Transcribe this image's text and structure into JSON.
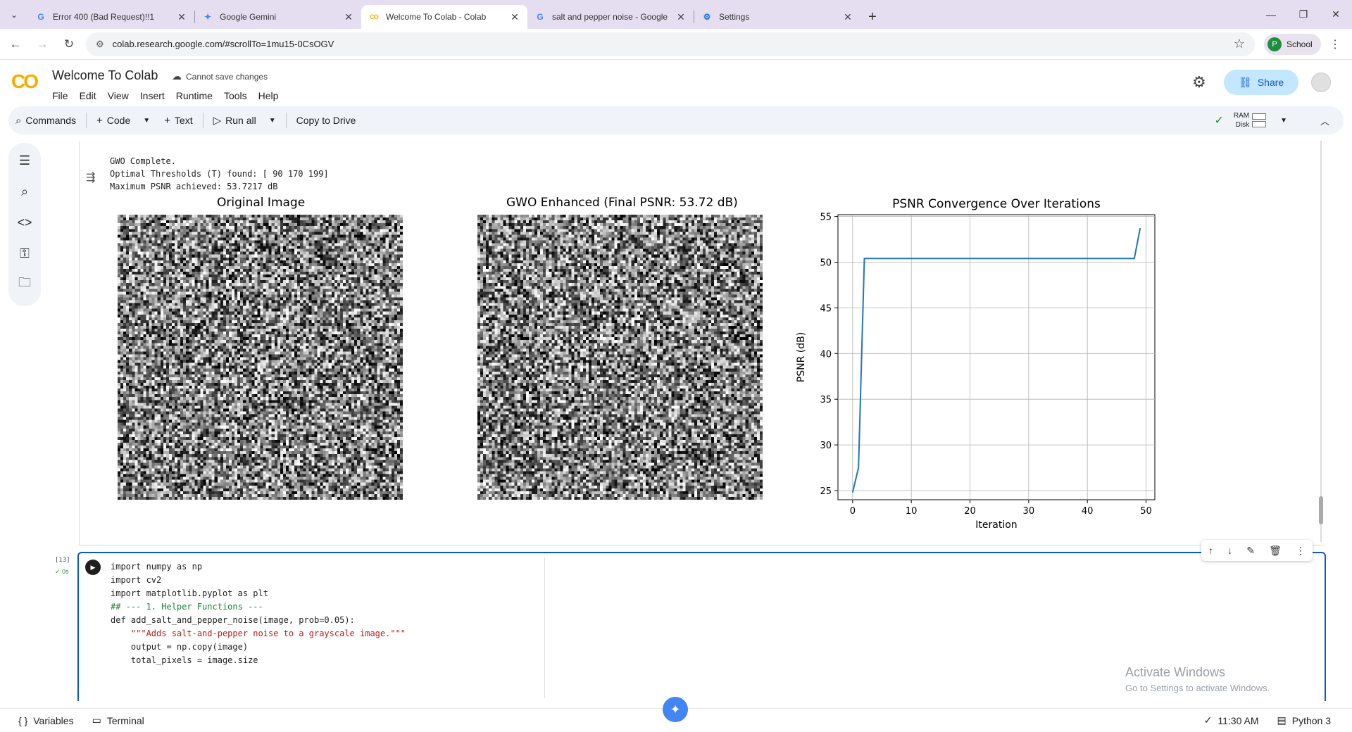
{
  "browser": {
    "tabs": [
      {
        "title": "Error 400 (Bad Request)!!1",
        "favicon": "G",
        "favicon_color": "#4285f4"
      },
      {
        "title": "Google Gemini",
        "favicon": "✦",
        "favicon_color": "#4285f4"
      },
      {
        "title": "Welcome To Colab - Colab",
        "favicon": "CO",
        "favicon_color": "#f9ab00",
        "active": true
      },
      {
        "title": "salt and pepper noise - Google",
        "favicon": "G",
        "favicon_color": "#4285f4"
      },
      {
        "title": "Settings",
        "favicon": "⚙",
        "favicon_color": "#1a73e8"
      }
    ],
    "url": "colab.research.google.com/#scrollTo=1mu15-0CsOGV",
    "profile": {
      "initial": "P",
      "label": "School"
    }
  },
  "colab": {
    "logo": "CO",
    "title": "Welcome To Colab",
    "save_status": "Cannot save changes",
    "menu": [
      "File",
      "Edit",
      "View",
      "Insert",
      "Runtime",
      "Tools",
      "Help"
    ],
    "share_label": "Share",
    "toolbar": {
      "commands": "Commands",
      "code": "Code",
      "text": "Text",
      "run_all": "Run all",
      "copy_to_drive": "Copy to Drive",
      "ram": "RAM",
      "disk": "Disk"
    }
  },
  "output": {
    "line1": "GWO Complete.",
    "line2": "Optimal Thresholds (T) found: [ 90 170 199]",
    "line3": "Maximum PSNR achieved: 53.7217 dB"
  },
  "figure": {
    "panel1_title": "Original Image",
    "panel2_title": "GWO Enhanced (Final PSNR: 53.72 dB)"
  },
  "chart_data": {
    "type": "line",
    "title": "PSNR Convergence Over Iterations",
    "xlabel": "Iteration",
    "ylabel": "PSNR (dB)",
    "xlim": [
      -2.5,
      51.5
    ],
    "ylim": [
      24,
      55.2
    ],
    "xticks": [
      0,
      10,
      20,
      30,
      40,
      50
    ],
    "yticks": [
      25,
      30,
      35,
      40,
      45,
      50,
      55
    ],
    "grid": true,
    "color": "#1f77b4",
    "x": [
      0,
      1,
      2,
      3,
      10,
      20,
      30,
      40,
      47,
      48,
      49
    ],
    "y": [
      24.8,
      27.5,
      50.4,
      50.4,
      50.4,
      50.4,
      50.4,
      50.4,
      50.4,
      50.4,
      53.72
    ]
  },
  "cell": {
    "exec_count": "[13]",
    "exec_time": "0s",
    "code_lines": [
      "import numpy as np",
      "import cv2",
      "import matplotlib.pyplot as plt",
      "",
      "## --- 1. Helper Functions ---",
      "",
      "def add_salt_and_pepper_noise(image, prob=0.05):",
      "    \"\"\"Adds salt-and-pepper noise to a grayscale image.\"\"\"",
      "    output = np.copy(image)",
      "    total_pixels = image.size"
    ]
  },
  "watermark": {
    "line1": "Activate Windows",
    "line2": "Go to Settings to activate Windows."
  },
  "statusbar": {
    "variables": "Variables",
    "terminal": "Terminal",
    "time": "11:30 AM",
    "runtime": "Python 3"
  }
}
